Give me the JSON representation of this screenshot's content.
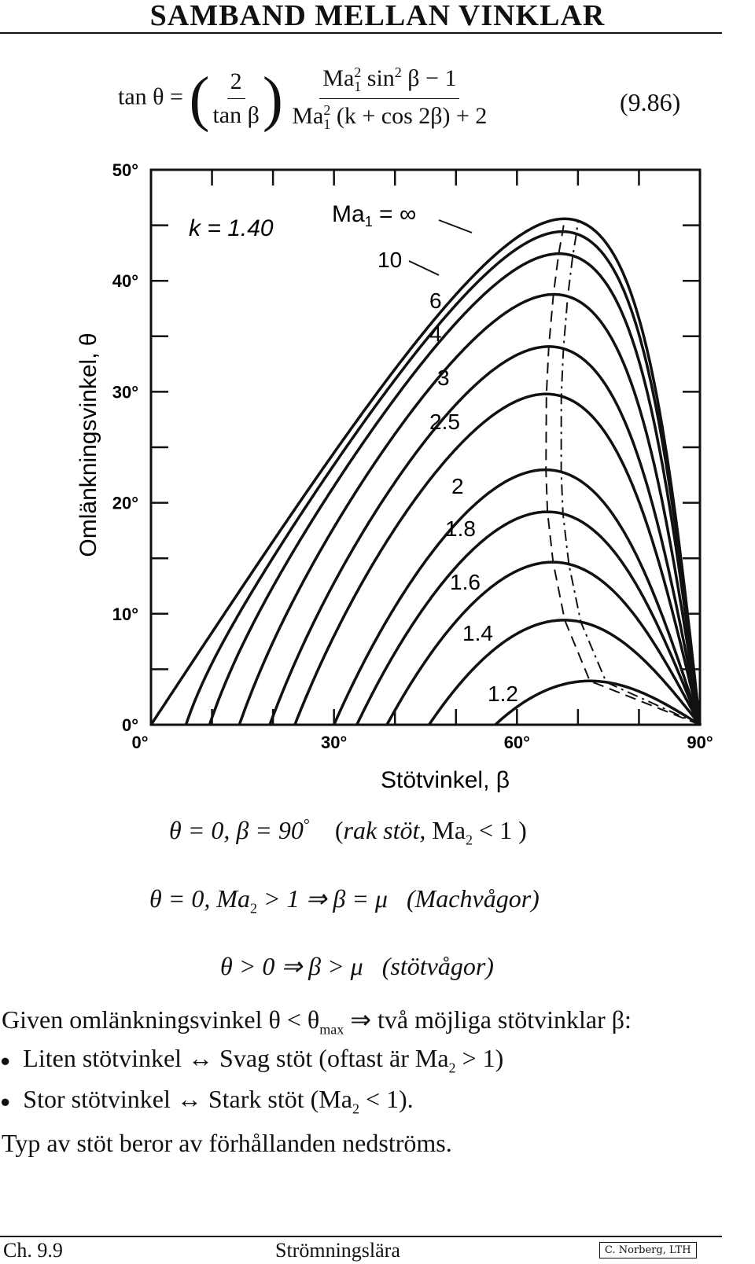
{
  "title": "SAMBAND MELLAN VINKLAR",
  "formula": {
    "lhs": "tan θ =",
    "frac1_num": "2",
    "frac1_den": "tan β",
    "frac2_num_pre": "Ma",
    "frac2_num_sub": "1",
    "frac2_num_sup": "2",
    "frac2_num_post": "sin",
    "frac2_num_sup2": "2",
    "frac2_num_tail": "β − 1",
    "frac2_den_pre": "Ma",
    "frac2_den_sub": "1",
    "frac2_den_sup": "2",
    "frac2_den_tail": "(k + cos 2β) + 2",
    "eq_number": "(9.86)"
  },
  "chart_data": {
    "type": "line",
    "xlabel": "Stötvinkel, β",
    "ylabel": "Omlänkningsvinkel, θ",
    "x_ticks": [
      "0°",
      "30°",
      "60°",
      "90°"
    ],
    "y_ticks": [
      "0°",
      "10°",
      "20°",
      "30°",
      "40°",
      "50°"
    ],
    "xlim": [
      0,
      90
    ],
    "ylim": [
      0,
      50
    ],
    "k_label": "k = 1.40",
    "grid": false,
    "series": [
      {
        "name": "Ma₁ = ∞",
        "mach": 1000,
        "label_text": "Ma",
        "label_sub": "1",
        "label_tail": " = ∞"
      },
      {
        "name": "10",
        "mach": 10
      },
      {
        "name": "6",
        "mach": 6
      },
      {
        "name": "4",
        "mach": 4
      },
      {
        "name": "3",
        "mach": 3
      },
      {
        "name": "2.5",
        "mach": 2.5
      },
      {
        "name": "2",
        "mach": 2
      },
      {
        "name": "1.8",
        "mach": 1.8
      },
      {
        "name": "1.6",
        "mach": 1.6
      },
      {
        "name": "1.4",
        "mach": 1.4
      },
      {
        "name": "1.2",
        "mach": 1.2
      }
    ],
    "extra_curves": [
      "dashed: θ_max locus",
      "dash-dot: Ma₂ = 1 locus"
    ]
  },
  "lines": {
    "l1": {
      "math": "θ = 0,  β = 90",
      "note_open": "(",
      "note_it": "rak stöt,",
      "note_tail": " Ma",
      "note_sub": "2",
      "note_end": " < 1 )"
    },
    "l2": {
      "math": "θ = 0,  Ma",
      "sub": "2",
      "math2": " > 1 ⇒ β = μ",
      "note": "(Machvågor)"
    },
    "l3": {
      "math": "θ > 0 ⇒ β > μ",
      "note": "(stötvågor)"
    },
    "l4": {
      "pre": "Given omlänkningsvinkel θ < θ",
      "sub": "max",
      "post": " ⇒ två möjliga stötvinklar β:"
    },
    "b1": {
      "pre": "Liten stötvinkel ↔ Svag stöt (oftast är Ma",
      "sub": "2",
      "post": " > 1)"
    },
    "b2": {
      "pre": "Stor stötvinkel ↔ Stark stöt (Ma",
      "sub": "2",
      "post": " < 1)."
    },
    "l5": "Typ av stöt beror av förhållanden nedströms."
  },
  "footer": {
    "left": "Ch.  9.9",
    "center": "Strömningslära",
    "stamp": "C. Norberg, LTH"
  }
}
